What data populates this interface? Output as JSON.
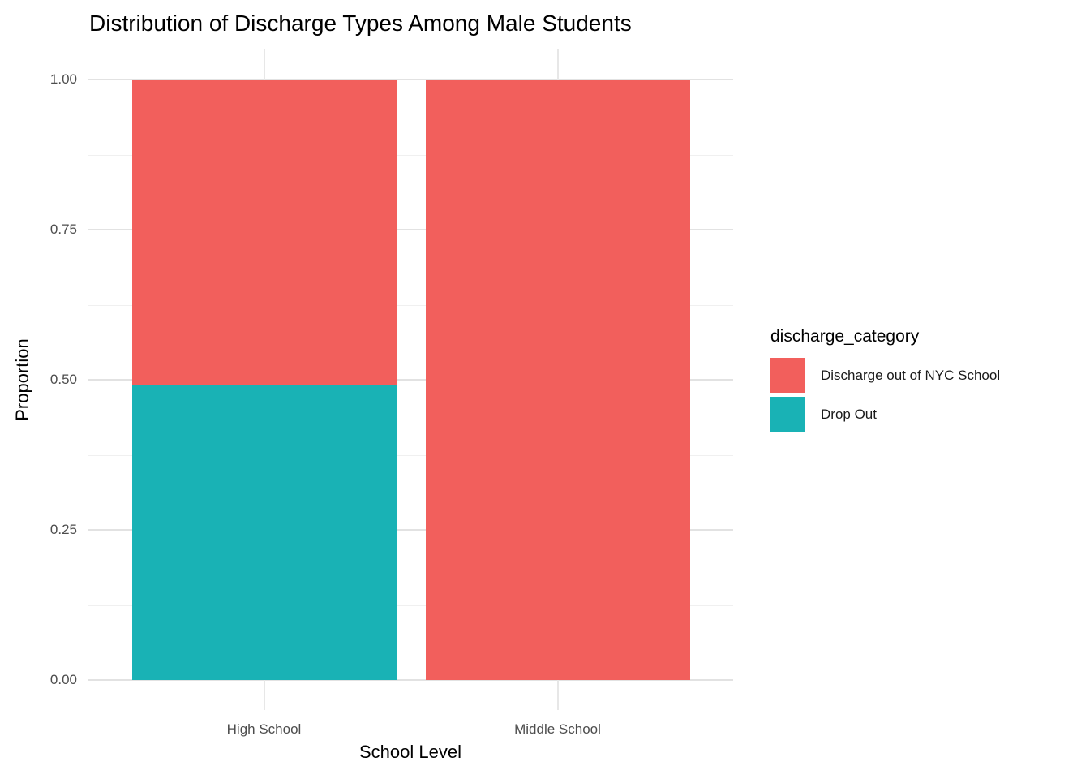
{
  "title": "Distribution of Discharge Types Among Male Students",
  "x_axis": {
    "label": "School Level",
    "tick_labels": [
      "High School",
      "Middle School"
    ]
  },
  "y_axis": {
    "label": "Proportion",
    "tick_labels": [
      "0.00",
      "0.25",
      "0.50",
      "0.75",
      "1.00"
    ],
    "tick_values": [
      0,
      0.25,
      0.5,
      0.75,
      1.0
    ],
    "minor_tick_values": [
      0.125,
      0.375,
      0.625,
      0.875
    ]
  },
  "legend": {
    "title": "discharge_category",
    "items": [
      {
        "label": "Discharge out of NYC School",
        "color": "#F25F5C"
      },
      {
        "label": "Drop Out",
        "color": "#19B2B5"
      }
    ]
  },
  "chart_data": {
    "type": "bar",
    "stacked": true,
    "title": "Distribution of Discharge Types Among Male Students",
    "xlabel": "School Level",
    "ylabel": "Proportion",
    "categories": [
      "High School",
      "Middle School"
    ],
    "series": [
      {
        "name": "Discharge out of NYC School",
        "color": "#F25F5C",
        "values": [
          0.51,
          1.0
        ]
      },
      {
        "name": "Drop Out",
        "color": "#19B2B5",
        "values": [
          0.49,
          0.0
        ]
      }
    ],
    "ylim": [
      0,
      1
    ],
    "grid": true,
    "legend_position": "right",
    "background": "#ffffff",
    "major_grid_color": "#e2e2e2",
    "minor_grid_color": "#f0f0f0"
  }
}
